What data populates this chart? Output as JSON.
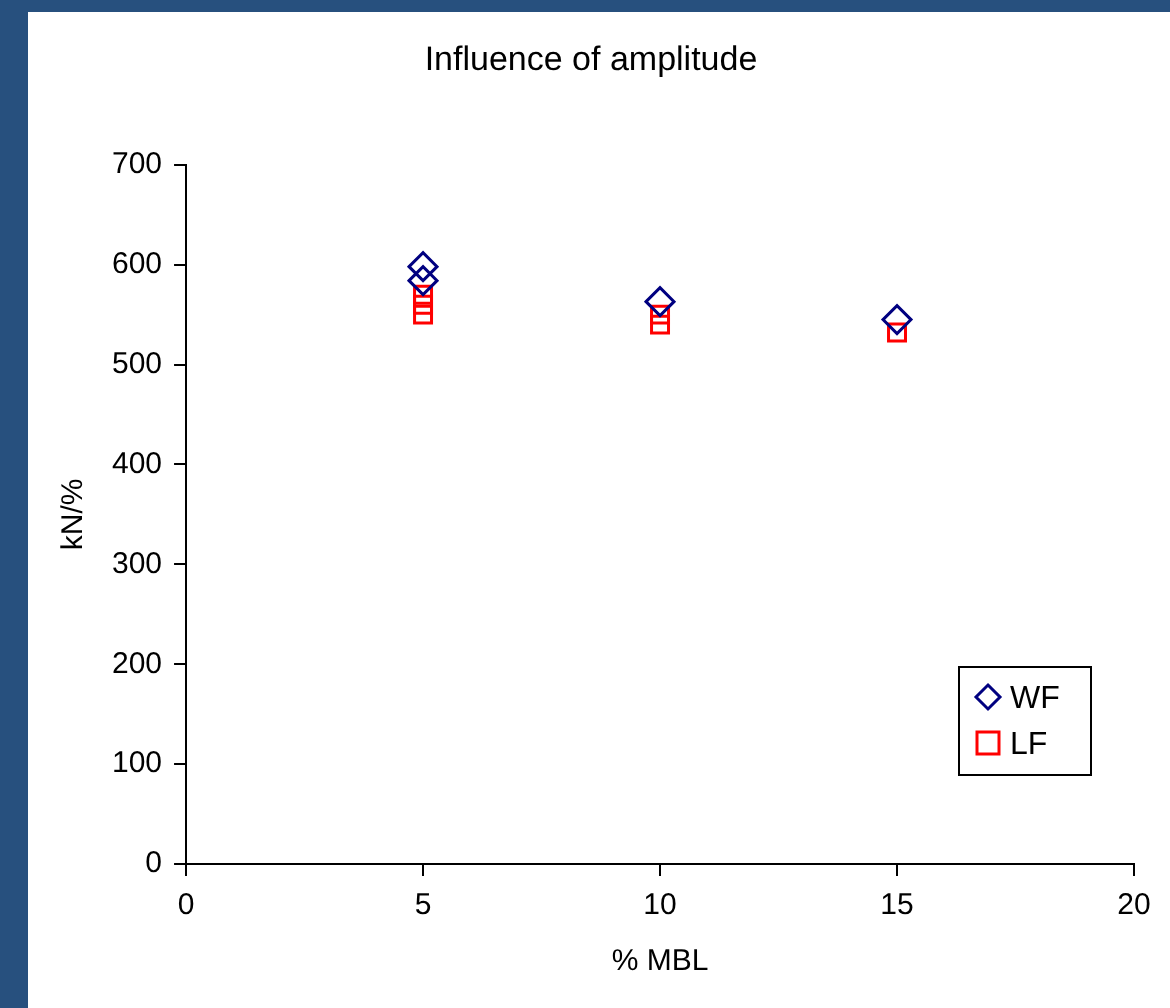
{
  "chart_data": {
    "type": "scatter",
    "title": "Influence of amplitude",
    "xlabel": "% MBL",
    "ylabel": "kN/%",
    "xlim": [
      0,
      20
    ],
    "xticks": [
      0,
      5,
      10,
      15,
      20
    ],
    "ylim": [
      0,
      700
    ],
    "yticks": [
      0,
      100,
      200,
      300,
      400,
      500,
      600,
      700
    ],
    "grid": false,
    "legend": "bottom right",
    "series": [
      {
        "name": "WF",
        "color": "#000080",
        "marker": "diamond",
        "x": [
          5,
          5,
          10,
          15
        ],
        "values": [
          598,
          584,
          563,
          545
        ]
      },
      {
        "name": "LF",
        "color": "#ff0000",
        "marker": "square",
        "x": [
          5,
          5,
          5,
          10,
          10,
          15
        ],
        "values": [
          570,
          560,
          550,
          550,
          540,
          532
        ]
      }
    ]
  }
}
